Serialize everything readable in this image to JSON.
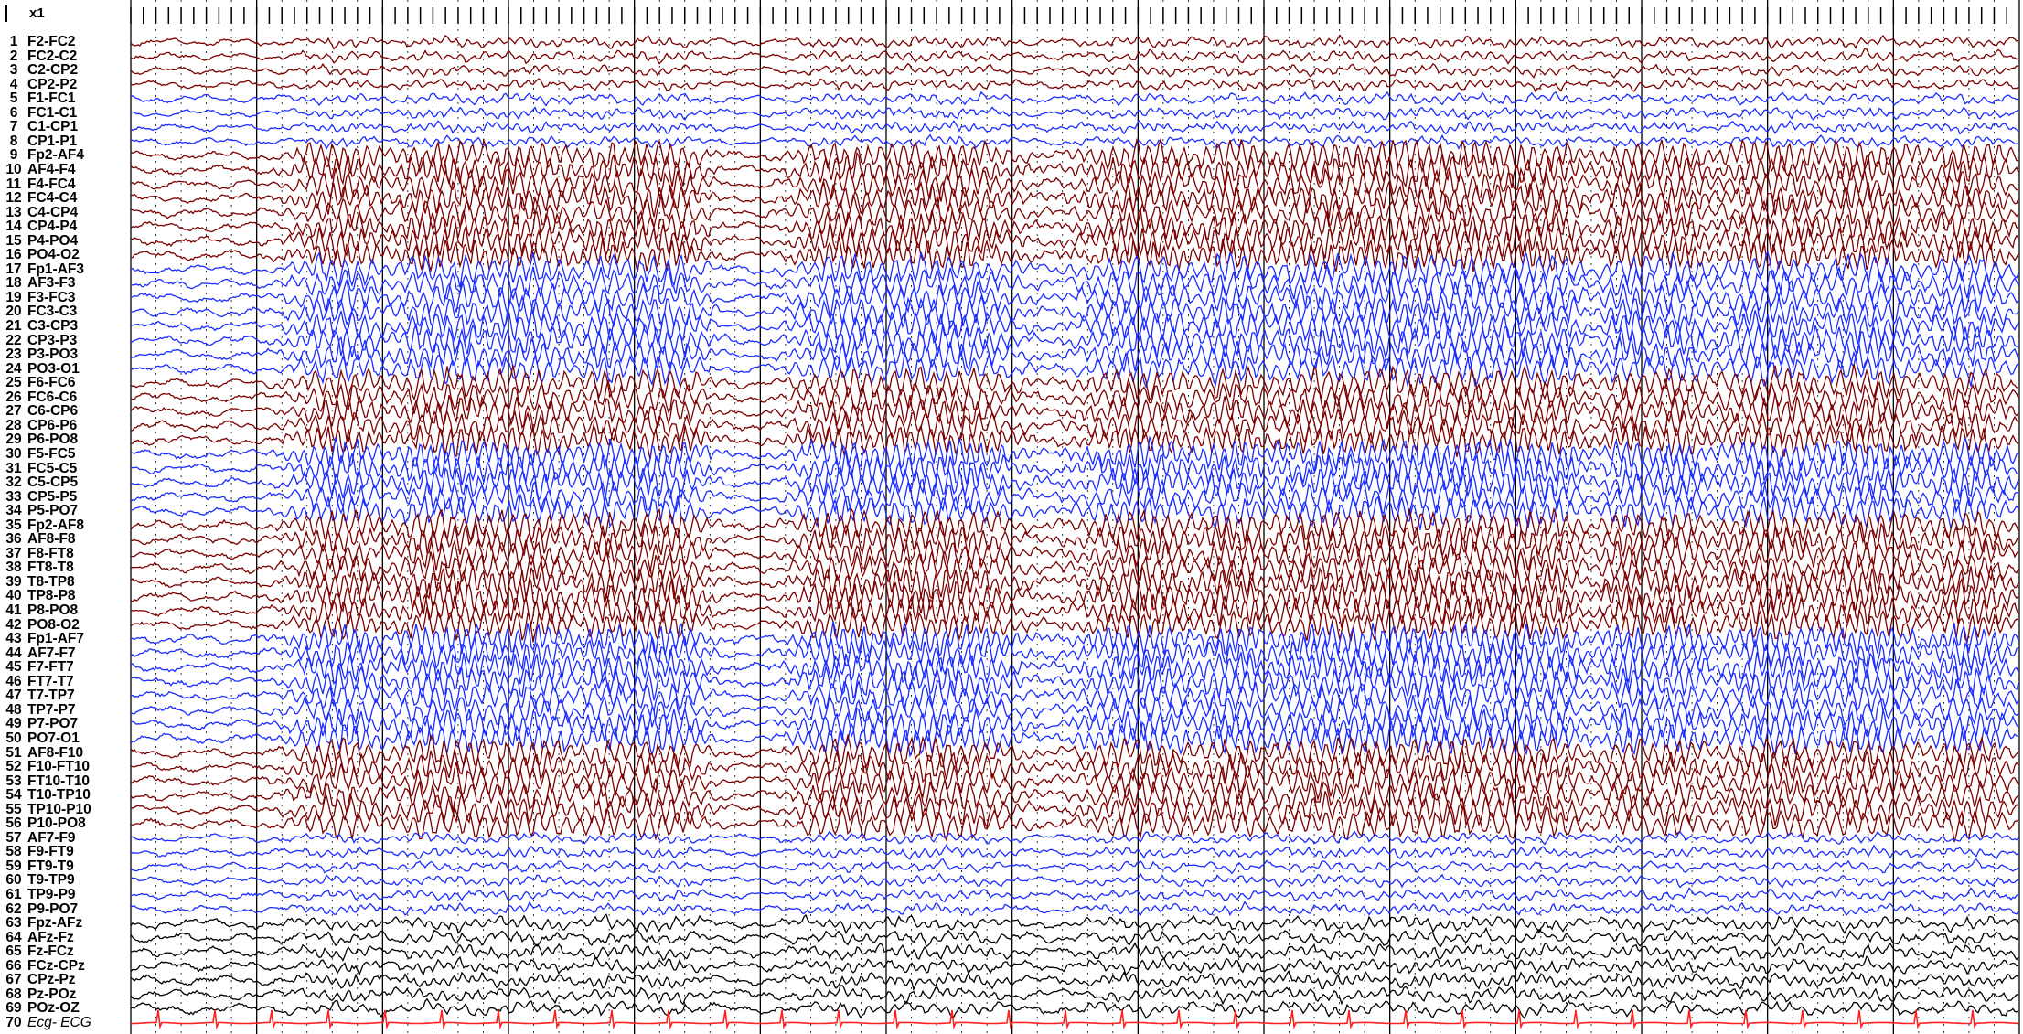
{
  "gain": "x1",
  "colors": {
    "right": "#7a0000",
    "left": "#1a2cff",
    "midline": "#000000",
    "ecg": "#ff2020"
  },
  "channels": [
    {
      "num": "1",
      "name": "F2-FC2",
      "group": "right"
    },
    {
      "num": "2",
      "name": "FC2-C2",
      "group": "right"
    },
    {
      "num": "3",
      "name": "C2-CP2",
      "group": "right"
    },
    {
      "num": "4",
      "name": "CP2-P2",
      "group": "right"
    },
    {
      "num": "5",
      "name": "F1-FC1",
      "group": "left"
    },
    {
      "num": "6",
      "name": "FC1-C1",
      "group": "left"
    },
    {
      "num": "7",
      "name": "C1-CP1",
      "group": "left"
    },
    {
      "num": "8",
      "name": "CP1-P1",
      "group": "left"
    },
    {
      "num": "9",
      "name": "Fp2-AF4",
      "group": "right"
    },
    {
      "num": "10",
      "name": "AF4-F4",
      "group": "right"
    },
    {
      "num": "11",
      "name": "F4-FC4",
      "group": "right"
    },
    {
      "num": "12",
      "name": "FC4-C4",
      "group": "right"
    },
    {
      "num": "13",
      "name": "C4-CP4",
      "group": "right"
    },
    {
      "num": "14",
      "name": "CP4-P4",
      "group": "right"
    },
    {
      "num": "15",
      "name": "P4-PO4",
      "group": "right"
    },
    {
      "num": "16",
      "name": "PO4-O2",
      "group": "right"
    },
    {
      "num": "17",
      "name": "Fp1-AF3",
      "group": "left"
    },
    {
      "num": "18",
      "name": "AF3-F3",
      "group": "left"
    },
    {
      "num": "19",
      "name": "F3-FC3",
      "group": "left"
    },
    {
      "num": "20",
      "name": "FC3-C3",
      "group": "left"
    },
    {
      "num": "21",
      "name": "C3-CP3",
      "group": "left"
    },
    {
      "num": "22",
      "name": "CP3-P3",
      "group": "left"
    },
    {
      "num": "23",
      "name": "P3-PO3",
      "group": "left"
    },
    {
      "num": "24",
      "name": "PO3-O1",
      "group": "left"
    },
    {
      "num": "25",
      "name": "F6-FC6",
      "group": "right"
    },
    {
      "num": "26",
      "name": "FC6-C6",
      "group": "right"
    },
    {
      "num": "27",
      "name": "C6-CP6",
      "group": "right"
    },
    {
      "num": "28",
      "name": "CP6-P6",
      "group": "right"
    },
    {
      "num": "29",
      "name": "P6-PO8",
      "group": "right"
    },
    {
      "num": "30",
      "name": "F5-FC5",
      "group": "left"
    },
    {
      "num": "31",
      "name": "FC5-C5",
      "group": "left"
    },
    {
      "num": "32",
      "name": "C5-CP5",
      "group": "left"
    },
    {
      "num": "33",
      "name": "CP5-P5",
      "group": "left"
    },
    {
      "num": "34",
      "name": "P5-PO7",
      "group": "left"
    },
    {
      "num": "35",
      "name": "Fp2-AF8",
      "group": "right"
    },
    {
      "num": "36",
      "name": "AF8-F8",
      "group": "right"
    },
    {
      "num": "37",
      "name": "F8-FT8",
      "group": "right"
    },
    {
      "num": "38",
      "name": "FT8-T8",
      "group": "right"
    },
    {
      "num": "39",
      "name": "T8-TP8",
      "group": "right"
    },
    {
      "num": "40",
      "name": "TP8-P8",
      "group": "right"
    },
    {
      "num": "41",
      "name": "P8-PO8",
      "group": "right"
    },
    {
      "num": "42",
      "name": "PO8-O2",
      "group": "right"
    },
    {
      "num": "43",
      "name": "Fp1-AF7",
      "group": "left"
    },
    {
      "num": "44",
      "name": "AF7-F7",
      "group": "left"
    },
    {
      "num": "45",
      "name": "F7-FT7",
      "group": "left"
    },
    {
      "num": "46",
      "name": "FT7-T7",
      "group": "left"
    },
    {
      "num": "47",
      "name": "T7-TP7",
      "group": "left"
    },
    {
      "num": "48",
      "name": "TP7-P7",
      "group": "left"
    },
    {
      "num": "49",
      "name": "P7-PO7",
      "group": "left"
    },
    {
      "num": "50",
      "name": "PO7-O1",
      "group": "left"
    },
    {
      "num": "51",
      "name": "AF8-F10",
      "group": "right"
    },
    {
      "num": "52",
      "name": "F10-FT10",
      "group": "right"
    },
    {
      "num": "53",
      "name": "FT10-T10",
      "group": "right"
    },
    {
      "num": "54",
      "name": "T10-TP10",
      "group": "right"
    },
    {
      "num": "55",
      "name": "TP10-P10",
      "group": "right"
    },
    {
      "num": "56",
      "name": "P10-PO8",
      "group": "right"
    },
    {
      "num": "57",
      "name": "AF7-F9",
      "group": "left"
    },
    {
      "num": "58",
      "name": "F9-FT9",
      "group": "left"
    },
    {
      "num": "59",
      "name": "FT9-T9",
      "group": "left"
    },
    {
      "num": "60",
      "name": "T9-TP9",
      "group": "left"
    },
    {
      "num": "61",
      "name": "TP9-P9",
      "group": "left"
    },
    {
      "num": "62",
      "name": "P9-PO7",
      "group": "left"
    },
    {
      "num": "63",
      "name": "Fpz-AFz",
      "group": "midline"
    },
    {
      "num": "64",
      "name": "AFz-Fz",
      "group": "midline"
    },
    {
      "num": "65",
      "name": "Fz-FCz",
      "group": "midline"
    },
    {
      "num": "66",
      "name": "FCz-CPz",
      "group": "midline"
    },
    {
      "num": "67",
      "name": "CPz-Pz",
      "group": "midline"
    },
    {
      "num": "68",
      "name": "Pz-POz",
      "group": "midline"
    },
    {
      "num": "69",
      "name": "POz-OZ",
      "group": "midline"
    },
    {
      "num": "70",
      "name": "Ecg- ECG",
      "group": "ecg"
    }
  ]
}
